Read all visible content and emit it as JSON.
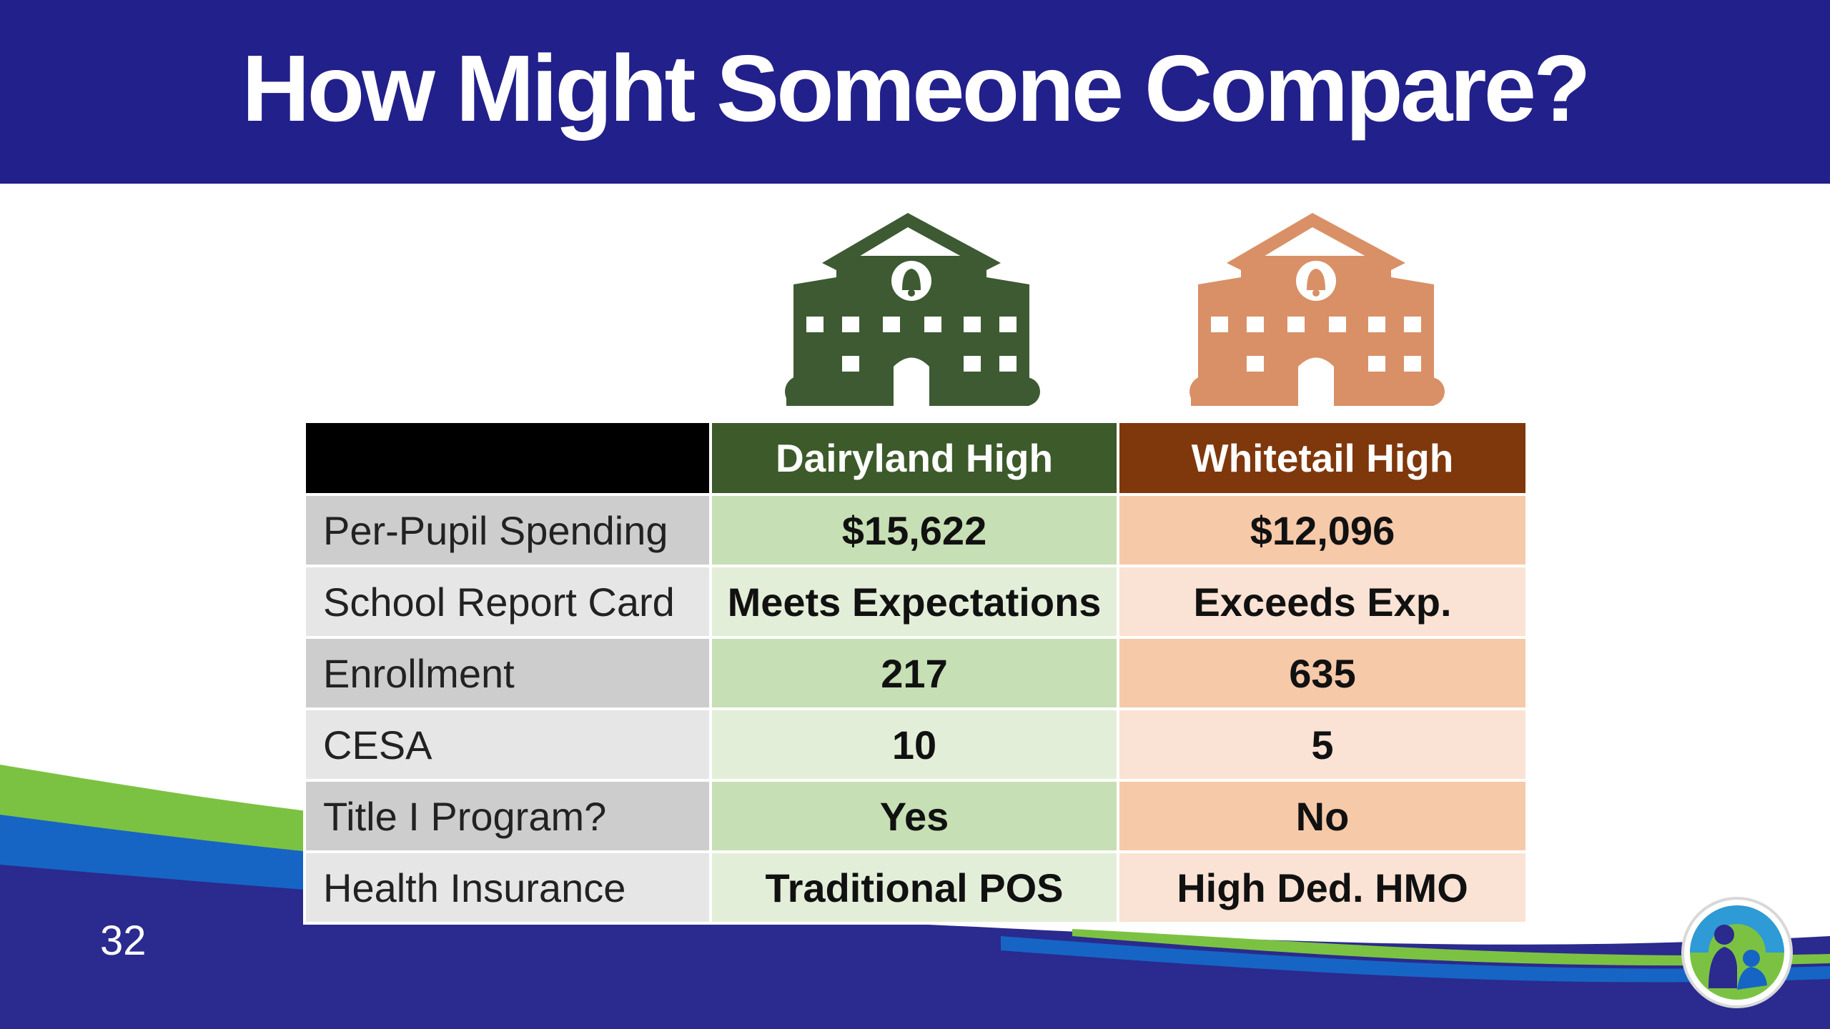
{
  "slide": {
    "title": "How Might Someone Compare?",
    "page_number": "32"
  },
  "colors": {
    "title_bar": "#22208a",
    "dairyland_header": "#3c5a2a",
    "whitetail_header": "#7f370c",
    "dairyland_icon": "#3d5a32",
    "whitetail_icon": "#d99067",
    "wave_green": "#7cc242",
    "wave_blue": "#1665c4",
    "wave_navy": "#2b2a8e"
  },
  "icons": {
    "dairyland": "school-building-icon",
    "whitetail": "school-building-icon",
    "logo": "agency-logo-icon"
  },
  "table": {
    "headers": [
      "",
      "Dairyland High",
      "Whitetail High"
    ],
    "rows": [
      {
        "label": "Per-Pupil Spending",
        "dairyland": "$15,622",
        "whitetail": "$12,096"
      },
      {
        "label": "School Report Card",
        "dairyland": "Meets Expectations",
        "whitetail": "Exceeds Exp."
      },
      {
        "label": "Enrollment",
        "dairyland": "217",
        "whitetail": "635"
      },
      {
        "label": "CESA",
        "dairyland": "10",
        "whitetail": "5"
      },
      {
        "label": "Title I Program?",
        "dairyland": "Yes",
        "whitetail": "No"
      },
      {
        "label": "Health Insurance",
        "dairyland": "Traditional POS",
        "whitetail": "High Ded. HMO"
      }
    ]
  }
}
